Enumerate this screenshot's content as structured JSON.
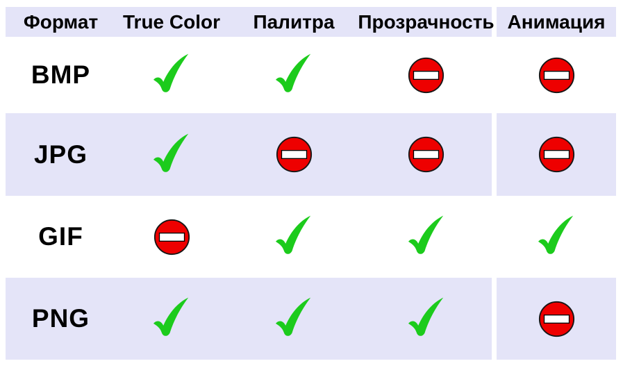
{
  "colors": {
    "row-highlight": "#E4E4F8",
    "check-green": "#1CCB1C",
    "no-entry-red": "#EE0000",
    "table-text": "#000000",
    "page-bg": "#FFFFFF"
  },
  "table": {
    "columns": [
      "Формат",
      "True Color",
      "Палитра",
      "Прозрачность",
      "Анимация"
    ],
    "rows": [
      {
        "format": "BMP",
        "cells": [
          "check",
          "check",
          "no-entry",
          "no-entry"
        ]
      },
      {
        "format": "JPG",
        "cells": [
          "check",
          "no-entry",
          "no-entry",
          "no-entry"
        ]
      },
      {
        "format": "GIF",
        "cells": [
          "no-entry",
          "check",
          "check",
          "check"
        ]
      },
      {
        "format": "PNG",
        "cells": [
          "check",
          "check",
          "check",
          "no-entry"
        ]
      }
    ]
  }
}
